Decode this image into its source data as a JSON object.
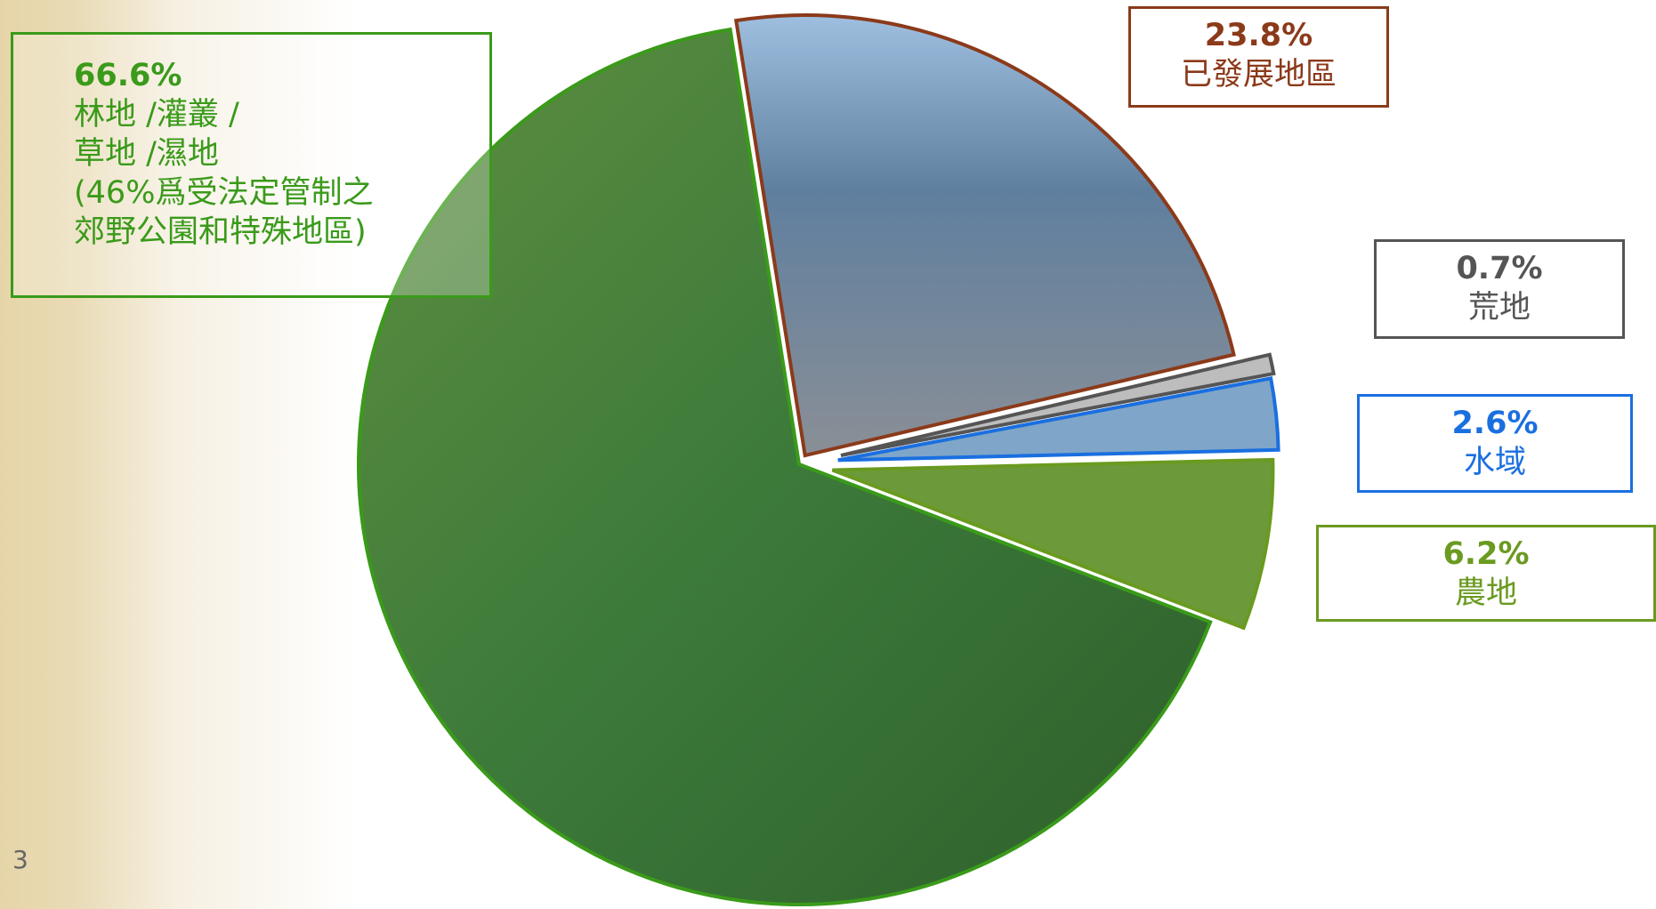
{
  "chart_data": {
    "type": "pie",
    "categories": [
      [
        "林地 /灌叢 /",
        "草地 /濕地",
        "(46%爲受法定管制之",
        "郊野公園和特殊地區)"
      ],
      [
        "已發展地區"
      ],
      [
        "荒地"
      ],
      [
        "水域"
      ],
      [
        "農地"
      ]
    ],
    "values": [
      66.6,
      23.8,
      0.7,
      2.6,
      6.2
    ],
    "value_labels": [
      "66.6%",
      "23.8%",
      "0.7%",
      "2.6%",
      "6.2%"
    ],
    "colors": [
      "#3f7f2e",
      "#6f8fa8",
      "#bdbdbd",
      "#7fa6c8",
      "#6c9a3a"
    ],
    "label_colors": [
      "#3a9a1a",
      "#8b3a1a",
      "#555555",
      "#1a6fe0",
      "#6a9a20"
    ]
  },
  "page_number": "3"
}
